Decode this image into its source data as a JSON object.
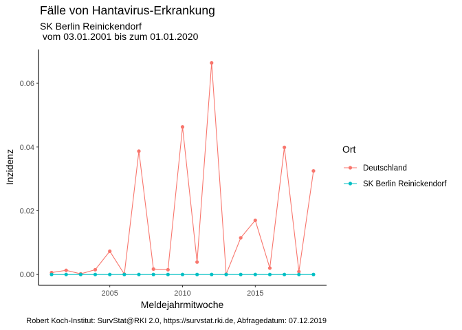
{
  "chart_data": {
    "type": "line",
    "title": "Fälle von Hantavirus-Erkrankung",
    "subtitle_line1": "SK Berlin Reinickendorf",
    "subtitle_line2": " vom 03.01.2001 bis zum 01.01.2020",
    "xlabel": "Meldejahrmitwoche",
    "ylabel": "Inzidenz",
    "caption": "Robert Koch-Institut: SurvStat@RKI 2.0, https://survstat.rki.de, Abfragedatum: 07.12.2019",
    "xlim": [
      2000.1,
      2019.9
    ],
    "ylim": [
      -0.0034,
      0.0706
    ],
    "x_ticks": [
      2005,
      2010,
      2015
    ],
    "y_ticks": [
      0.0,
      0.02,
      0.04,
      0.06
    ],
    "y_tick_labels": [
      "0.00",
      "0.02",
      "0.04",
      "0.06"
    ],
    "grid": false,
    "legend": {
      "title": "Ort",
      "position": "right"
    },
    "x": [
      2001,
      2002,
      2003,
      2004,
      2005,
      2006,
      2007,
      2008,
      2009,
      2010,
      2011,
      2012,
      2013,
      2014,
      2015,
      2016,
      2017,
      2018,
      2019
    ],
    "series": [
      {
        "name": "Deutschland",
        "color": "#F8766D",
        "values": [
          0.0006,
          0.0013,
          0.0002,
          0.0015,
          0.0073,
          0.0001,
          0.0387,
          0.0017,
          0.0015,
          0.0463,
          0.0039,
          0.0664,
          0.0001,
          0.0115,
          0.017,
          0.002,
          0.0399,
          0.0009,
          0.0325
        ]
      },
      {
        "name": "SK Berlin Reinickendorf",
        "color": "#00BFC4",
        "values": [
          0,
          0,
          0,
          0,
          0,
          0,
          0,
          0,
          0,
          0,
          0,
          0,
          0,
          0,
          0,
          0,
          0,
          0,
          0
        ]
      }
    ]
  }
}
